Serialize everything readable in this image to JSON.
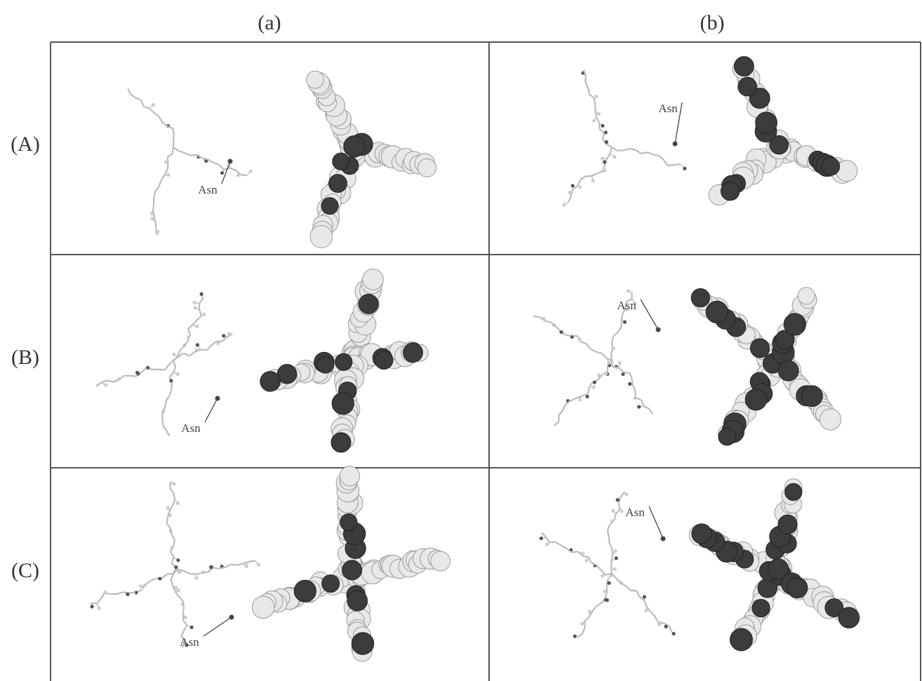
{
  "columns": [
    "(a)",
    "(b)"
  ],
  "rows": [
    {
      "label": "(A)",
      "cells": [
        {
          "annotation": "Asn"
        },
        {
          "annotation": "Asn"
        }
      ]
    },
    {
      "label": "(B)",
      "cells": [
        {
          "annotation": "Asn"
        },
        {
          "annotation": "Asn"
        }
      ]
    },
    {
      "label": "(C)",
      "cells": [
        {
          "annotation": "Asn"
        },
        {
          "annotation": "Asn"
        }
      ]
    }
  ]
}
